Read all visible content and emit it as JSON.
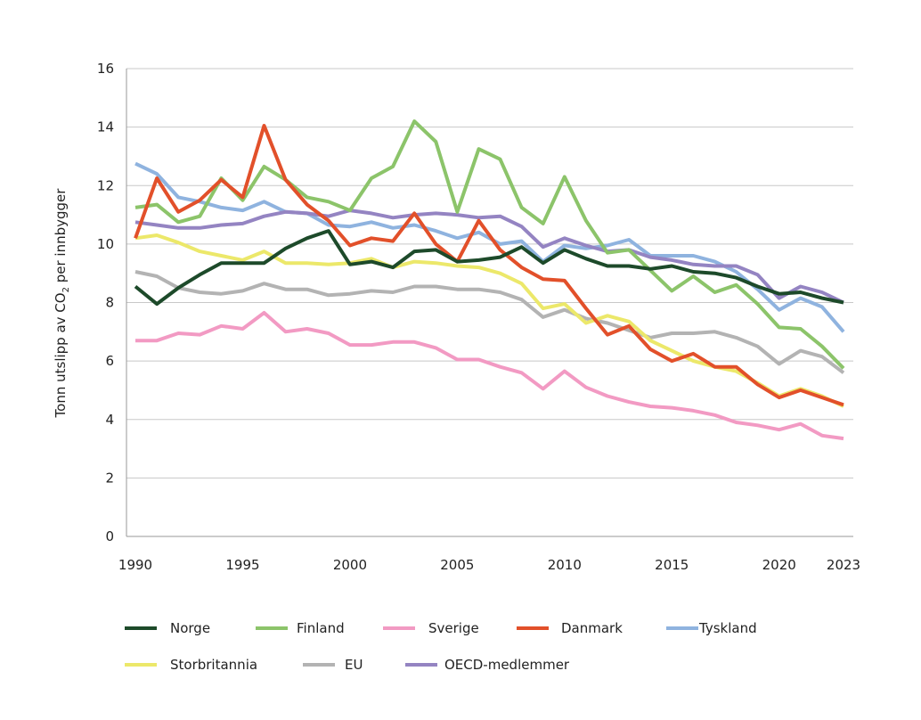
{
  "chart_data": {
    "type": "line",
    "title": "",
    "xlabel": "",
    "ylabel": "Tonn utslipp av CO₂ per innbygger",
    "ylim": [
      0,
      16
    ],
    "xlim": [
      1990,
      2023
    ],
    "y_ticks": [
      0,
      2,
      4,
      6,
      8,
      10,
      12,
      14,
      16
    ],
    "x_ticks": [
      1990,
      1995,
      2000,
      2005,
      2010,
      2015,
      2020,
      2023
    ],
    "grid": "horizontal",
    "legend_placement": "bottom",
    "x": [
      1990,
      1991,
      1992,
      1993,
      1994,
      1995,
      1996,
      1997,
      1998,
      1999,
      2000,
      2001,
      2002,
      2003,
      2004,
      2005,
      2006,
      2007,
      2008,
      2009,
      2010,
      2011,
      2012,
      2013,
      2014,
      2015,
      2016,
      2017,
      2018,
      2019,
      2020,
      2021,
      2022,
      2023
    ],
    "series": [
      {
        "name": "Norge",
        "color": "#1d4a2a",
        "values": [
          8.55,
          7.95,
          8.5,
          8.95,
          9.35,
          9.35,
          9.35,
          9.85,
          10.2,
          10.45,
          9.3,
          9.4,
          9.2,
          9.75,
          9.8,
          9.4,
          9.45,
          9.55,
          9.9,
          9.35,
          9.8,
          9.5,
          9.25,
          9.25,
          9.15,
          9.25,
          9.05,
          9.0,
          8.85,
          8.55,
          8.3,
          8.35,
          8.15,
          8.0
        ]
      },
      {
        "name": "Finland",
        "color": "#8cc46a",
        "values": [
          11.25,
          11.35,
          10.75,
          10.95,
          12.25,
          11.5,
          12.65,
          12.2,
          11.6,
          11.45,
          11.15,
          12.25,
          12.65,
          14.2,
          13.5,
          11.1,
          13.25,
          12.9,
          11.25,
          10.7,
          12.3,
          10.8,
          9.7,
          9.8,
          9.1,
          8.4,
          8.9,
          8.35,
          8.6,
          7.95,
          7.15,
          7.1,
          6.5,
          5.75
        ]
      },
      {
        "name": "Sverige",
        "color": "#f29ac3",
        "values": [
          6.7,
          6.7,
          6.95,
          6.9,
          7.2,
          7.1,
          7.65,
          7.0,
          7.1,
          6.95,
          6.55,
          6.55,
          6.65,
          6.65,
          6.45,
          6.05,
          6.05,
          5.8,
          5.6,
          5.05,
          5.65,
          5.1,
          4.8,
          4.6,
          4.45,
          4.4,
          4.3,
          4.15,
          3.9,
          3.8,
          3.65,
          3.85,
          3.45,
          3.35
        ]
      },
      {
        "name": "Danmark",
        "color": "#e2502a",
        "values": [
          10.2,
          12.25,
          11.1,
          11.5,
          12.2,
          11.6,
          14.05,
          12.2,
          11.35,
          10.8,
          9.95,
          10.2,
          10.1,
          11.05,
          10.0,
          9.4,
          10.8,
          9.8,
          9.2,
          8.8,
          8.75,
          7.8,
          6.9,
          7.2,
          6.4,
          6.0,
          6.25,
          5.8,
          5.8,
          5.2,
          4.75,
          5.0,
          4.75,
          4.5
        ]
      },
      {
        "name": "Tyskland",
        "color": "#8fb3df",
        "values": [
          12.75,
          12.4,
          11.6,
          11.45,
          11.25,
          11.15,
          11.45,
          11.1,
          11.05,
          10.65,
          10.6,
          10.75,
          10.55,
          10.65,
          10.45,
          10.2,
          10.4,
          10.0,
          10.1,
          9.4,
          9.95,
          9.85,
          9.95,
          10.15,
          9.6,
          9.6,
          9.6,
          9.4,
          9.05,
          8.45,
          7.75,
          8.15,
          7.85,
          7.0
        ]
      },
      {
        "name": "Storbritannia",
        "color": "#ece86a",
        "values": [
          10.2,
          10.3,
          10.05,
          9.75,
          9.6,
          9.45,
          9.75,
          9.35,
          9.35,
          9.3,
          9.35,
          9.5,
          9.2,
          9.4,
          9.35,
          9.25,
          9.2,
          9.0,
          8.65,
          7.8,
          7.95,
          7.3,
          7.55,
          7.35,
          6.7,
          6.35,
          6.0,
          5.8,
          5.65,
          5.25,
          4.8,
          5.05,
          4.8,
          4.45
        ]
      },
      {
        "name": "EU",
        "color": "#b3b3b3",
        "values": [
          9.05,
          8.9,
          8.5,
          8.35,
          8.3,
          8.4,
          8.65,
          8.45,
          8.45,
          8.25,
          8.3,
          8.4,
          8.35,
          8.55,
          8.55,
          8.45,
          8.45,
          8.35,
          8.1,
          7.5,
          7.75,
          7.45,
          7.3,
          7.05,
          6.8,
          6.95,
          6.95,
          7.0,
          6.8,
          6.5,
          5.9,
          6.35,
          6.15,
          5.6
        ]
      },
      {
        "name": "OECD-medlemmer",
        "color": "#9484c2",
        "values": [
          10.75,
          10.65,
          10.55,
          10.55,
          10.65,
          10.7,
          10.95,
          11.1,
          11.05,
          10.95,
          11.15,
          11.05,
          10.9,
          11.0,
          11.05,
          11.0,
          10.9,
          10.95,
          10.6,
          9.9,
          10.2,
          9.95,
          9.75,
          9.8,
          9.55,
          9.45,
          9.3,
          9.25,
          9.25,
          8.95,
          8.15,
          8.55,
          8.35,
          8.0
        ]
      }
    ]
  }
}
